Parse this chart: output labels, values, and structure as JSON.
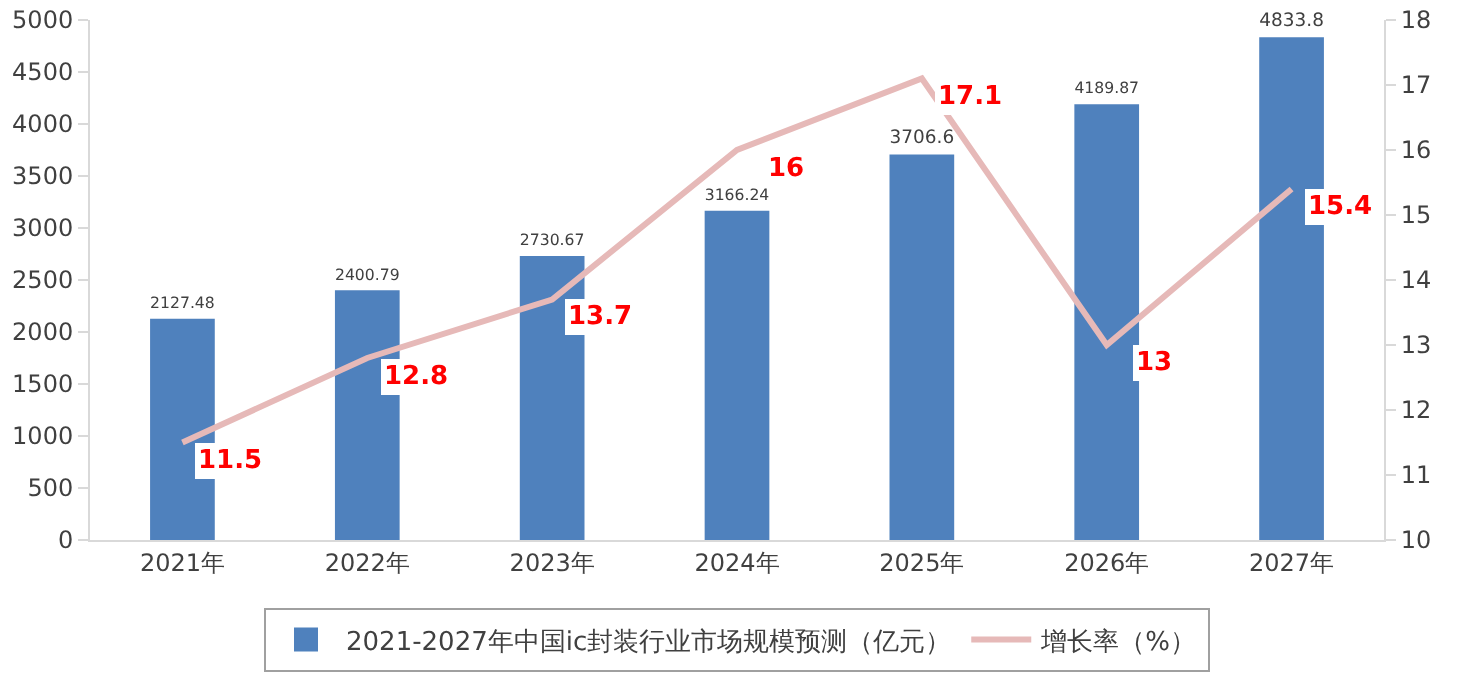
{
  "chart_data": {
    "type": "bar",
    "categories": [
      "2021年",
      "2022年",
      "2023年",
      "2024年",
      "2025年",
      "2026年",
      "2027年"
    ],
    "series": [
      {
        "name": "2021-2027年中国ic封装行业市场规模预测（亿元）",
        "color": "#4f81bd",
        "values": [
          2127.48,
          2400.79,
          2730.67,
          3166.24,
          3706.6,
          4189.87,
          4833.8
        ]
      },
      {
        "name": "增长率（%）",
        "type": "line",
        "axis": "y2",
        "color": "#e6b9b8",
        "values": [
          11.5,
          12.8,
          13.7,
          16,
          17.1,
          13,
          15.4
        ]
      }
    ],
    "ylim": [
      0,
      5000
    ],
    "yticks": [
      0,
      500,
      1000,
      1500,
      2000,
      2500,
      3000,
      3500,
      4000,
      4500,
      5000
    ],
    "y2lim": [
      10,
      18
    ],
    "y2ticks": [
      10,
      11,
      12,
      13,
      14,
      15,
      16,
      17,
      18
    ],
    "data_labels": true,
    "grid": false,
    "legend": "bottom",
    "marker": "none"
  }
}
